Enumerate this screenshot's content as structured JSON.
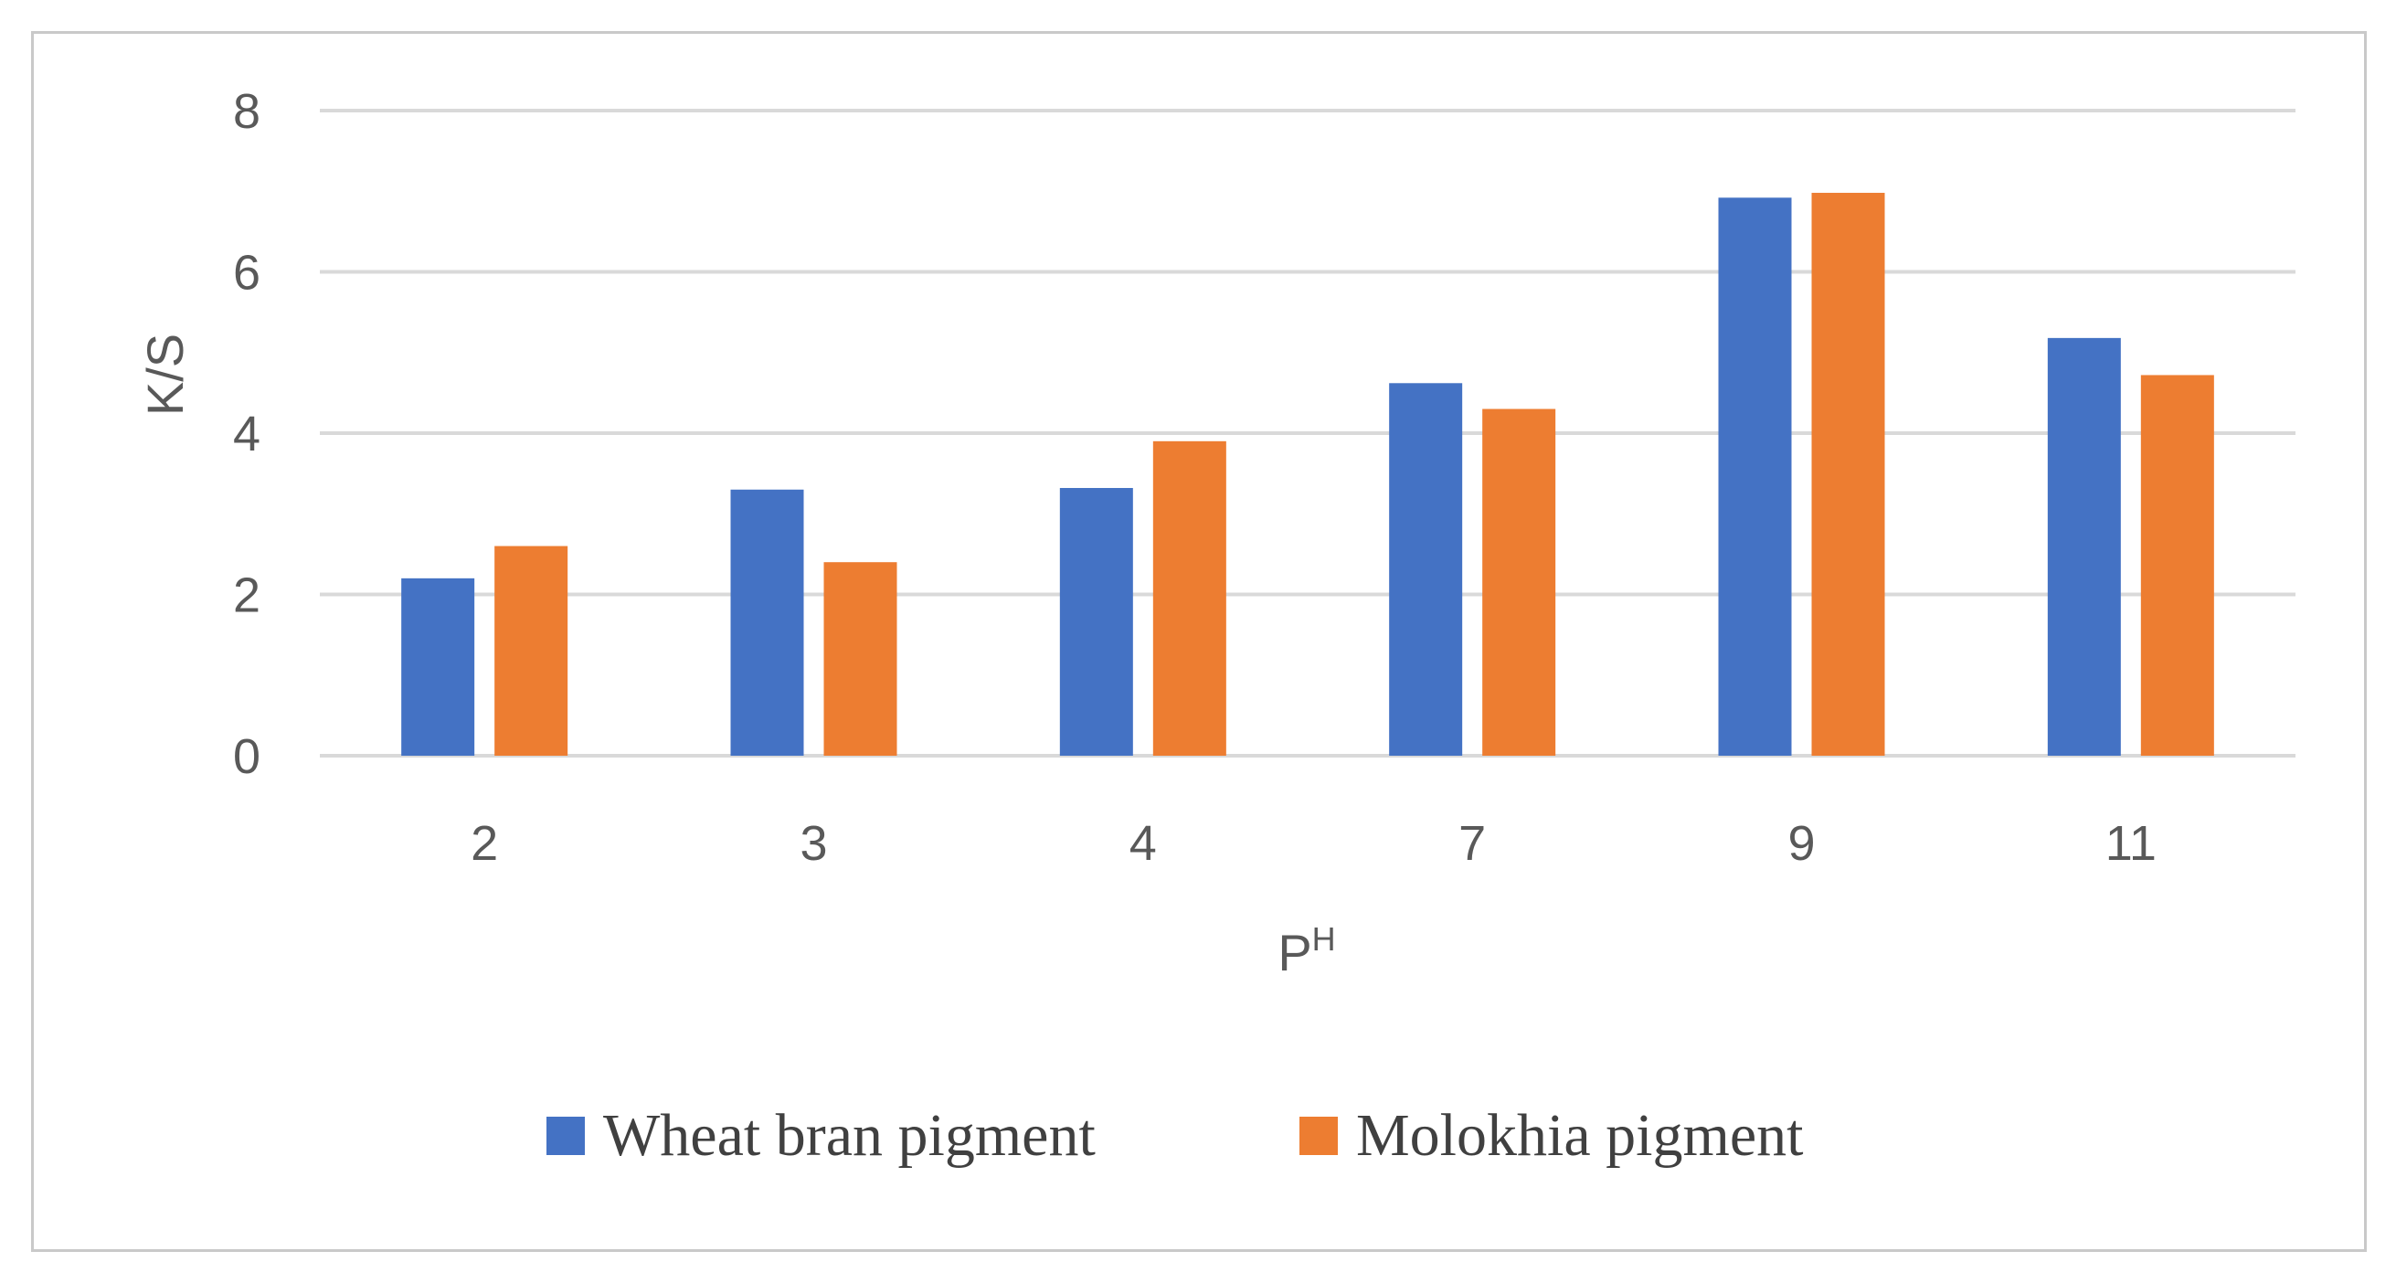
{
  "chart_data": {
    "type": "bar",
    "title": "",
    "xlabel": "P",
    "xlabel_superscript": "H",
    "ylabel": "K/S",
    "categories": [
      "2",
      "3",
      "4",
      "7",
      "9",
      "11"
    ],
    "ylim": [
      0,
      8
    ],
    "yticks": [
      "0",
      "2",
      "4",
      "6",
      "8"
    ],
    "grid": true,
    "legend_position": "bottom",
    "series": [
      {
        "name": "Wheat bran pigment",
        "color": "#4472C4",
        "values": [
          2.2,
          3.3,
          3.32,
          4.62,
          6.92,
          5.18
        ]
      },
      {
        "name": "Molokhia pigment",
        "color": "#ED7D31",
        "values": [
          2.6,
          2.4,
          3.9,
          4.3,
          6.98,
          4.72
        ]
      }
    ]
  }
}
